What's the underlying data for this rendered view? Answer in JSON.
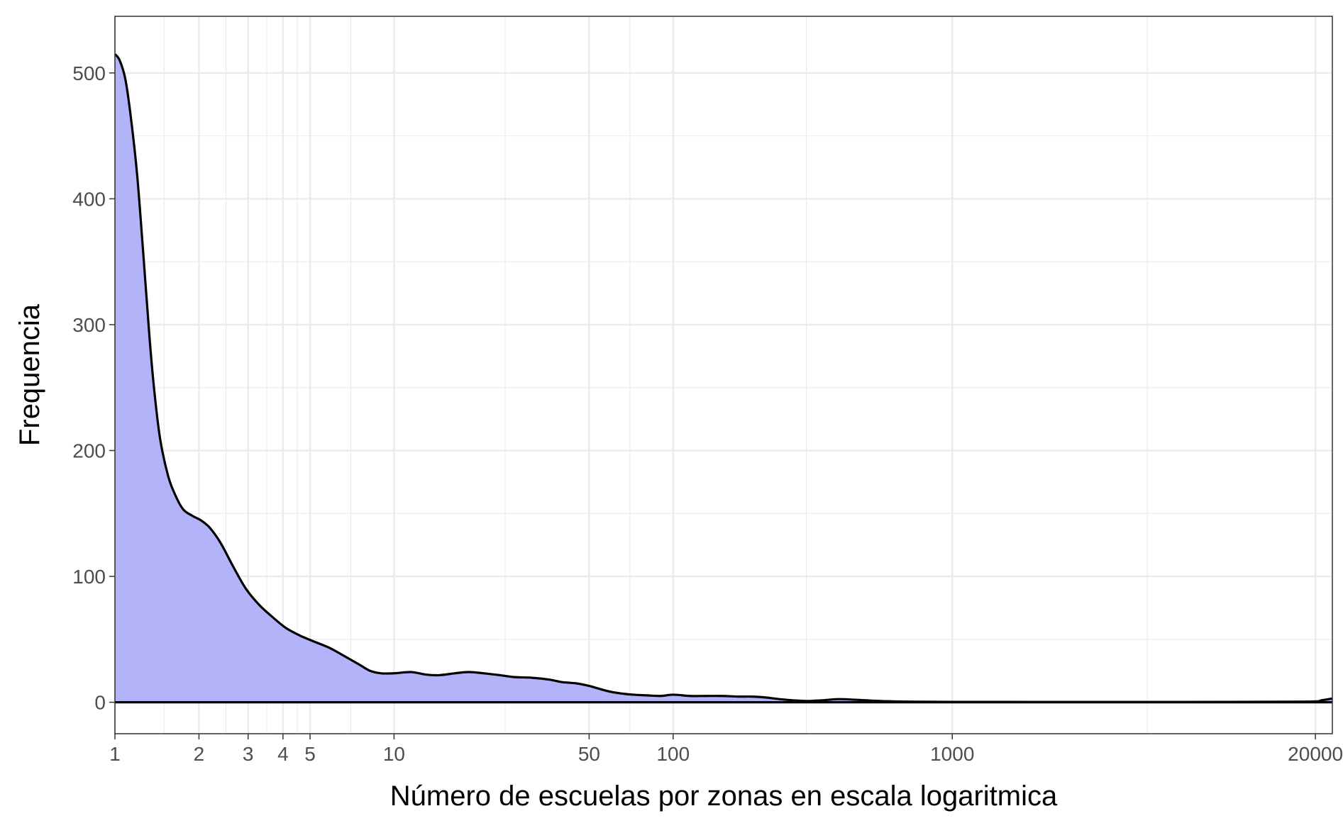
{
  "chart_data": {
    "type": "area",
    "xlabel": "Número de escuelas por zonas en escala logaritmica",
    "ylabel": "Frequencia",
    "x_scale": "log10",
    "xlim": [
      1,
      23000
    ],
    "ylim": [
      -25,
      545
    ],
    "x_ticks": [
      {
        "value": 1,
        "label": "1"
      },
      {
        "value": 2,
        "label": "2"
      },
      {
        "value": 3,
        "label": "3"
      },
      {
        "value": 4,
        "label": "4"
      },
      {
        "value": 5,
        "label": "5"
      },
      {
        "value": 10,
        "label": "10"
      },
      {
        "value": 50,
        "label": "50"
      },
      {
        "value": 100,
        "label": "100"
      },
      {
        "value": 1000,
        "label": "1000"
      },
      {
        "value": 20000,
        "label": "20000"
      }
    ],
    "y_ticks": [
      {
        "value": 0,
        "label": "0"
      },
      {
        "value": 100,
        "label": "100"
      },
      {
        "value": 200,
        "label": "200"
      },
      {
        "value": 300,
        "label": "300"
      },
      {
        "value": 400,
        "label": "400"
      },
      {
        "value": 500,
        "label": "500"
      }
    ],
    "x_minor_grid": [
      1.5,
      2.5,
      3.5,
      4.5,
      7,
      25,
      70,
      300,
      5000
    ],
    "y_minor_grid": [
      50,
      150,
      250,
      350,
      450
    ],
    "grid": true,
    "legend": "none",
    "fill_color": "#b3b3fa",
    "line_color": "#000000",
    "series": [
      {
        "x": [
          1,
          1.04,
          1.09,
          1.14,
          1.2,
          1.26,
          1.33,
          1.38,
          1.45,
          1.55,
          1.65,
          1.76,
          1.9,
          2.05,
          2.2,
          2.4,
          2.65,
          2.95,
          3.3,
          3.7,
          4.1,
          4.6,
          5.2,
          5.9,
          6.6,
          7.5,
          8.2,
          9.0,
          10.0,
          11.5,
          13.0,
          14.5,
          16.5,
          18.5,
          21.0,
          24.0,
          27.0,
          31.0,
          36.0,
          40.0,
          45.0,
          50.0,
          58.0,
          65.0,
          72.0,
          80.0,
          90.0,
          100.0,
          115.0,
          130.0,
          150.0,
          170.0,
          190.0,
          210.0,
          240.0,
          270.0,
          300.0,
          340.0,
          390.0,
          450.0,
          550.0,
          700.0,
          1000.0,
          3000.0,
          10000.0,
          19000.0,
          21000.0,
          23000.0
        ],
        "y": [
          515,
          510,
          495,
          465,
          420,
          360,
          290,
          250,
          210,
          180,
          164,
          153,
          148,
          144,
          138,
          126,
          108,
          90,
          77,
          67,
          59,
          53,
          48,
          43,
          37,
          30,
          25,
          23,
          23,
          24,
          22,
          21.5,
          23,
          24,
          23,
          21.5,
          20,
          19.5,
          18,
          16,
          15,
          13,
          9,
          7,
          6,
          5.5,
          5,
          6,
          5,
          5,
          5,
          4.5,
          4.5,
          4,
          2.5,
          1.5,
          1,
          1.5,
          2.5,
          2,
          1,
          0.5,
          0.3,
          0.2,
          0.3,
          0.5,
          1.5,
          3
        ]
      }
    ]
  }
}
